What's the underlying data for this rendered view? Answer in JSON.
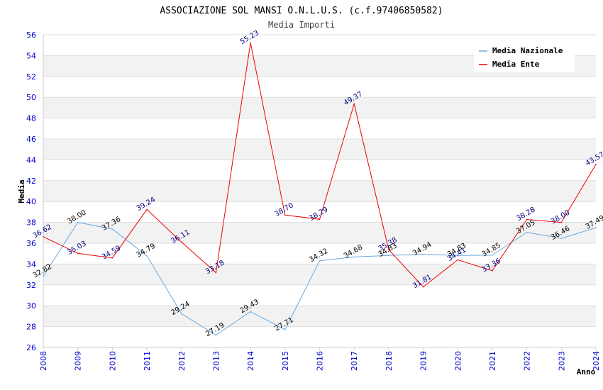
{
  "chart_data": {
    "type": "line",
    "title": "ASSOCIAZIONE SOL MANSI O.N.L.U.S. (c.f.97406850582)",
    "subtitle": "Media Importi",
    "xlabel": "Anno",
    "ylabel": "Media",
    "ylim": [
      26,
      56
    ],
    "yticks": [
      26,
      28,
      30,
      32,
      34,
      36,
      38,
      40,
      42,
      44,
      46,
      48,
      50,
      52,
      54,
      56
    ],
    "grid": true,
    "legend_position": "top-right",
    "x": [
      "2008",
      "2009",
      "2010",
      "2011",
      "2012",
      "2013",
      "2014",
      "2015",
      "2016",
      "2017",
      "2018",
      "2019",
      "2020",
      "2021",
      "2022",
      "2023",
      "2024"
    ],
    "series": [
      {
        "name": "Media Nazionale",
        "color": "#6aa9e0",
        "values": [
          32.82,
          38.0,
          37.36,
          34.79,
          29.24,
          27.19,
          29.43,
          27.71,
          34.32,
          34.68,
          34.83,
          34.94,
          34.83,
          34.85,
          37.05,
          36.46,
          37.49
        ],
        "labels": [
          "32.82",
          "38.00",
          "37.36",
          "34.79",
          "29.24",
          "27.19",
          "29.43",
          "27.71",
          "34.32",
          "34.68",
          "34.83",
          "34.94",
          "34.83",
          "34.85",
          "37.05",
          "36.46",
          "37.49"
        ]
      },
      {
        "name": "Media Ente",
        "color": "#ee0000",
        "values": [
          36.62,
          35.03,
          34.59,
          39.24,
          36.11,
          33.18,
          55.23,
          38.7,
          38.29,
          49.37,
          35.38,
          31.81,
          34.41,
          33.36,
          38.28,
          38.0,
          43.57
        ],
        "labels": [
          "36.62",
          "35.03",
          "34.59",
          "39.24",
          "36.11",
          "33.18",
          "55.23",
          "38.70",
          "38.29",
          "49.37",
          "35.38",
          "31.81",
          "34.41",
          "33.36",
          "38.28",
          "38.00",
          "43.57"
        ]
      }
    ]
  }
}
